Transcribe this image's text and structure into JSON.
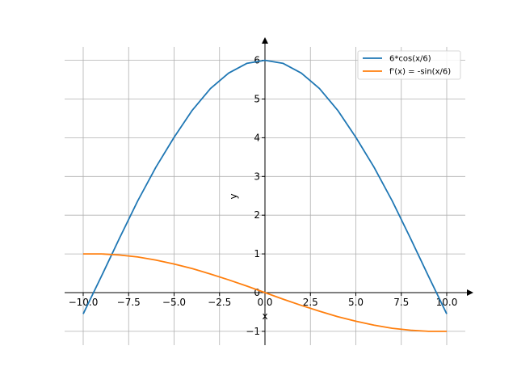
{
  "chart_data": {
    "type": "line",
    "title": "",
    "xlabel": "x",
    "ylabel": "y",
    "xlim": [
      -10.5,
      11.5
    ],
    "ylim": [
      -1.4,
      6.4
    ],
    "xticks": [
      -10.0,
      -7.5,
      -5.0,
      -2.5,
      0.0,
      2.5,
      5.0,
      7.5,
      10.0
    ],
    "xtick_labels": [
      "−10.0",
      "−7.5",
      "−5.0",
      "−2.5",
      "0.0",
      "2.5",
      "5.0",
      "7.5",
      "10.0"
    ],
    "yticks": [
      -1,
      0,
      1,
      2,
      3,
      4,
      5,
      6
    ],
    "ytick_labels": [
      "−1",
      "0",
      "1",
      "2",
      "3",
      "4",
      "5",
      "6"
    ],
    "grid": true,
    "legend_position": "top-right",
    "series": [
      {
        "name": "6*cos(x/6)",
        "color": "#1f77b4",
        "x": [
          -10,
          -9,
          -8,
          -7,
          -6,
          -5,
          -4,
          -3,
          -2,
          -1,
          0,
          1,
          2,
          3,
          4,
          5,
          6,
          7,
          8,
          9,
          10
        ],
        "y": [
          -0.55,
          0.42,
          1.41,
          2.37,
          3.24,
          4.01,
          4.71,
          5.27,
          5.67,
          5.92,
          6.0,
          5.92,
          5.67,
          5.27,
          4.71,
          4.01,
          3.24,
          2.37,
          1.41,
          0.42,
          -0.55
        ]
      },
      {
        "name": "f'(x) = -sin(x/6)",
        "color": "#ff7f0e",
        "x": [
          -10,
          -9,
          -8,
          -7,
          -6,
          -5,
          -4,
          -3,
          -2,
          -1,
          0,
          1,
          2,
          3,
          4,
          5,
          6,
          7,
          8,
          9,
          10
        ],
        "y": [
          1.0,
          1.0,
          0.97,
          0.92,
          0.84,
          0.74,
          0.62,
          0.48,
          0.33,
          0.17,
          0.0,
          -0.17,
          -0.33,
          -0.48,
          -0.62,
          -0.74,
          -0.84,
          -0.92,
          -0.97,
          -1.0,
          -1.0
        ]
      }
    ]
  }
}
